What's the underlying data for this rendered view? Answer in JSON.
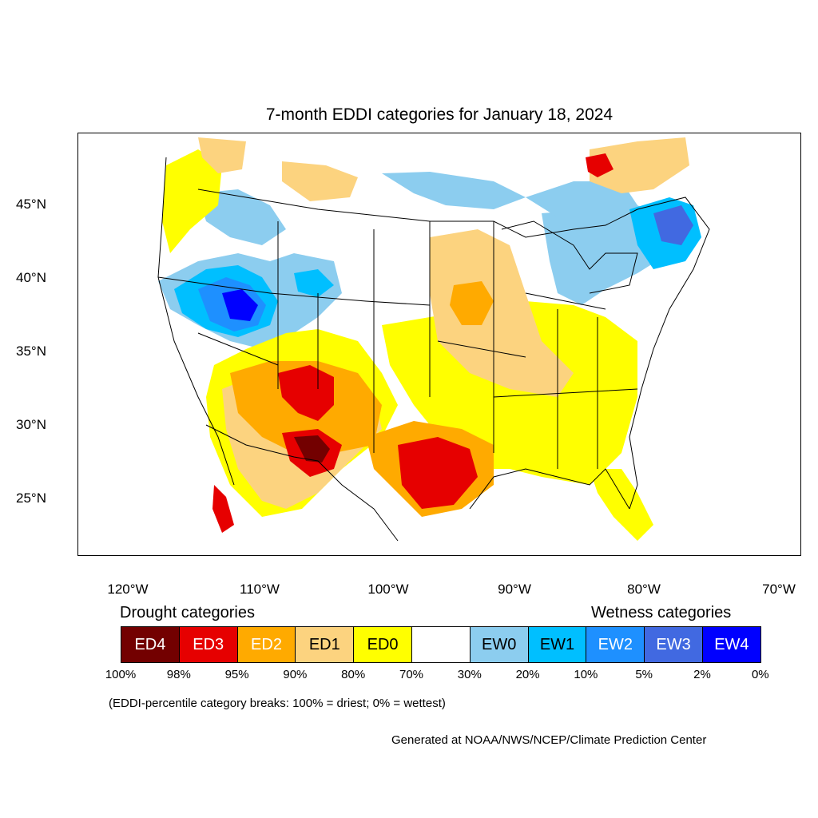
{
  "title": "7-month EDDI categories for January 18, 2024",
  "axes": {
    "lat_labels": [
      "45°N",
      "40°N",
      "35°N",
      "30°N",
      "25°N"
    ],
    "lon_labels": [
      "120°W",
      "110°W",
      "100°W",
      "90°W",
      "80°W",
      "70°W"
    ]
  },
  "legend": {
    "drought_caption": "Drought categories",
    "wetness_caption": "Wetness categories",
    "categories": [
      {
        "label": "ED4",
        "color": "#730000"
      },
      {
        "label": "ED3",
        "color": "#e60000"
      },
      {
        "label": "ED2",
        "color": "#ffaa00"
      },
      {
        "label": "ED1",
        "color": "#fcd37f"
      },
      {
        "label": "ED0",
        "color": "#ffff00"
      },
      {
        "label": "",
        "color": "#ffffff"
      },
      {
        "label": "EW0",
        "color": "#8ccdef"
      },
      {
        "label": "EW1",
        "color": "#00bfff"
      },
      {
        "label": "EW2",
        "color": "#1e90ff"
      },
      {
        "label": "EW3",
        "color": "#4169e1"
      },
      {
        "label": "EW4",
        "color": "#0000ff"
      }
    ],
    "breaks": [
      "100%",
      "98%",
      "95%",
      "90%",
      "80%",
      "70%",
      "30%",
      "20%",
      "10%",
      "5%",
      "2%",
      "0%"
    ]
  },
  "note": "(EDDI-percentile category breaks: 100% = driest; 0% = wettest)",
  "credit": "Generated at NOAA/NWS/NCEP/Climate Prediction Center"
}
